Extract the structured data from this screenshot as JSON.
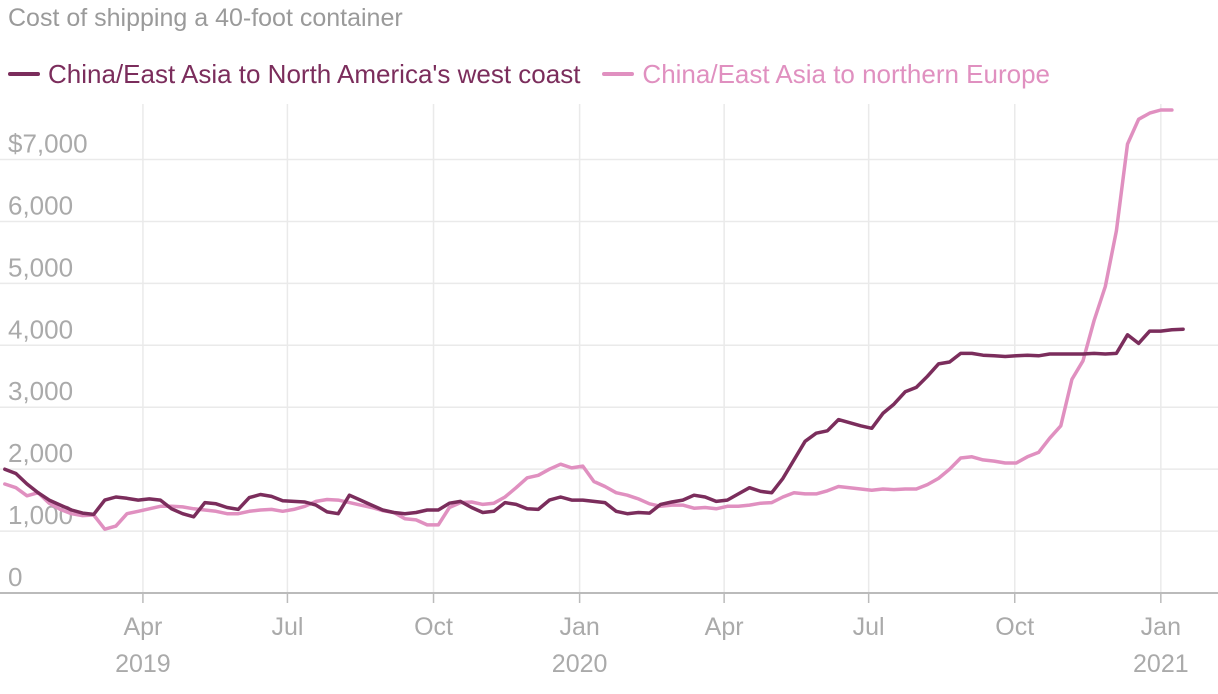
{
  "chart_data": {
    "type": "line",
    "title": "Cost of shipping a 40-foot container",
    "xlabel": "",
    "ylabel": "",
    "ylim": [
      0,
      7800
    ],
    "yticks": [
      0,
      1000,
      2000,
      3000,
      4000,
      5000,
      6000,
      7000
    ],
    "ytick_labels": [
      "0",
      "1,000",
      "2,000",
      "3,000",
      "4,000",
      "5,000",
      "6,000",
      "$7,000"
    ],
    "xlim": [
      "2019-01-01",
      "2021-02-06"
    ],
    "xticks": [
      {
        "date": "2019-04-01",
        "label": "Apr",
        "year": "2019"
      },
      {
        "date": "2019-07-01",
        "label": "Jul",
        "year": ""
      },
      {
        "date": "2019-10-01",
        "label": "Oct",
        "year": ""
      },
      {
        "date": "2020-01-01",
        "label": "Jan",
        "year": "2020"
      },
      {
        "date": "2020-04-01",
        "label": "Apr",
        "year": ""
      },
      {
        "date": "2020-07-01",
        "label": "Jul",
        "year": ""
      },
      {
        "date": "2020-10-01",
        "label": "Oct",
        "year": ""
      },
      {
        "date": "2021-01-01",
        "label": "Jan",
        "year": "2021"
      }
    ],
    "grid": true,
    "legend_position": "top-left",
    "series": [
      {
        "name": "China/East Asia to North America's west coast",
        "color": "#7b2d5c",
        "points": [
          [
            "2019-01-04",
            2000
          ],
          [
            "2019-01-11",
            1930
          ],
          [
            "2019-01-18",
            1760
          ],
          [
            "2019-01-25",
            1620
          ],
          [
            "2019-02-01",
            1500
          ],
          [
            "2019-02-08",
            1420
          ],
          [
            "2019-02-15",
            1340
          ],
          [
            "2019-02-22",
            1290
          ],
          [
            "2019-03-01",
            1270
          ],
          [
            "2019-03-08",
            1500
          ],
          [
            "2019-03-15",
            1550
          ],
          [
            "2019-03-22",
            1530
          ],
          [
            "2019-03-29",
            1500
          ],
          [
            "2019-04-05",
            1520
          ],
          [
            "2019-04-12",
            1500
          ],
          [
            "2019-04-19",
            1360
          ],
          [
            "2019-04-26",
            1280
          ],
          [
            "2019-05-03",
            1230
          ],
          [
            "2019-05-10",
            1460
          ],
          [
            "2019-05-17",
            1440
          ],
          [
            "2019-05-24",
            1380
          ],
          [
            "2019-05-31",
            1350
          ],
          [
            "2019-06-07",
            1540
          ],
          [
            "2019-06-14",
            1590
          ],
          [
            "2019-06-21",
            1560
          ],
          [
            "2019-06-28",
            1490
          ],
          [
            "2019-07-05",
            1480
          ],
          [
            "2019-07-12",
            1470
          ],
          [
            "2019-07-19",
            1420
          ],
          [
            "2019-07-26",
            1310
          ],
          [
            "2019-08-02",
            1280
          ],
          [
            "2019-08-09",
            1580
          ],
          [
            "2019-08-16",
            1500
          ],
          [
            "2019-08-23",
            1420
          ],
          [
            "2019-08-30",
            1340
          ],
          [
            "2019-09-06",
            1300
          ],
          [
            "2019-09-13",
            1280
          ],
          [
            "2019-09-20",
            1300
          ],
          [
            "2019-09-27",
            1340
          ],
          [
            "2019-10-04",
            1340
          ],
          [
            "2019-10-11",
            1450
          ],
          [
            "2019-10-18",
            1480
          ],
          [
            "2019-10-25",
            1380
          ],
          [
            "2019-11-01",
            1300
          ],
          [
            "2019-11-08",
            1320
          ],
          [
            "2019-11-15",
            1460
          ],
          [
            "2019-11-22",
            1430
          ],
          [
            "2019-11-29",
            1360
          ],
          [
            "2019-12-06",
            1350
          ],
          [
            "2019-12-13",
            1500
          ],
          [
            "2019-12-20",
            1550
          ],
          [
            "2019-12-27",
            1500
          ],
          [
            "2020-01-03",
            1500
          ],
          [
            "2020-01-10",
            1480
          ],
          [
            "2020-01-17",
            1460
          ],
          [
            "2020-01-24",
            1320
          ],
          [
            "2020-01-31",
            1280
          ],
          [
            "2020-02-07",
            1300
          ],
          [
            "2020-02-14",
            1290
          ],
          [
            "2020-02-21",
            1430
          ],
          [
            "2020-02-28",
            1470
          ],
          [
            "2020-03-06",
            1500
          ],
          [
            "2020-03-13",
            1580
          ],
          [
            "2020-03-20",
            1550
          ],
          [
            "2020-03-27",
            1480
          ],
          [
            "2020-04-03",
            1500
          ],
          [
            "2020-04-10",
            1600
          ],
          [
            "2020-04-17",
            1700
          ],
          [
            "2020-04-24",
            1640
          ],
          [
            "2020-05-01",
            1620
          ],
          [
            "2020-05-08",
            1850
          ],
          [
            "2020-05-15",
            2150
          ],
          [
            "2020-05-22",
            2450
          ],
          [
            "2020-05-29",
            2580
          ],
          [
            "2020-06-05",
            2620
          ],
          [
            "2020-06-12",
            2800
          ],
          [
            "2020-06-19",
            2750
          ],
          [
            "2020-06-26",
            2700
          ],
          [
            "2020-07-03",
            2660
          ],
          [
            "2020-07-10",
            2900
          ],
          [
            "2020-07-17",
            3050
          ],
          [
            "2020-07-24",
            3250
          ],
          [
            "2020-07-31",
            3320
          ],
          [
            "2020-08-07",
            3500
          ],
          [
            "2020-08-14",
            3700
          ],
          [
            "2020-08-21",
            3730
          ],
          [
            "2020-08-28",
            3870
          ],
          [
            "2020-09-04",
            3870
          ],
          [
            "2020-09-11",
            3840
          ],
          [
            "2020-09-18",
            3830
          ],
          [
            "2020-09-25",
            3820
          ],
          [
            "2020-10-02",
            3830
          ],
          [
            "2020-10-09",
            3840
          ],
          [
            "2020-10-16",
            3830
          ],
          [
            "2020-10-23",
            3860
          ],
          [
            "2020-10-30",
            3860
          ],
          [
            "2020-11-06",
            3860
          ],
          [
            "2020-11-13",
            3860
          ],
          [
            "2020-11-20",
            3870
          ],
          [
            "2020-11-27",
            3860
          ],
          [
            "2020-12-04",
            3870
          ],
          [
            "2020-12-11",
            4170
          ],
          [
            "2020-12-18",
            4030
          ],
          [
            "2020-12-25",
            4230
          ],
          [
            "2021-01-01",
            4230
          ],
          [
            "2021-01-08",
            4250
          ],
          [
            "2021-01-15",
            4260
          ]
        ]
      },
      {
        "name": "China/East Asia to northern Europe",
        "color": "#e090c0",
        "points": [
          [
            "2019-01-04",
            1760
          ],
          [
            "2019-01-11",
            1700
          ],
          [
            "2019-01-18",
            1570
          ],
          [
            "2019-01-25",
            1620
          ],
          [
            "2019-02-01",
            1450
          ],
          [
            "2019-02-08",
            1350
          ],
          [
            "2019-02-15",
            1280
          ],
          [
            "2019-02-22",
            1250
          ],
          [
            "2019-03-01",
            1260
          ],
          [
            "2019-03-08",
            1030
          ],
          [
            "2019-03-15",
            1080
          ],
          [
            "2019-03-22",
            1280
          ],
          [
            "2019-03-29",
            1320
          ],
          [
            "2019-04-05",
            1360
          ],
          [
            "2019-04-12",
            1400
          ],
          [
            "2019-04-19",
            1400
          ],
          [
            "2019-04-26",
            1390
          ],
          [
            "2019-05-03",
            1360
          ],
          [
            "2019-05-10",
            1340
          ],
          [
            "2019-05-17",
            1320
          ],
          [
            "2019-05-24",
            1280
          ],
          [
            "2019-05-31",
            1280
          ],
          [
            "2019-06-07",
            1320
          ],
          [
            "2019-06-14",
            1340
          ],
          [
            "2019-06-21",
            1350
          ],
          [
            "2019-06-28",
            1320
          ],
          [
            "2019-07-05",
            1350
          ],
          [
            "2019-07-12",
            1400
          ],
          [
            "2019-07-19",
            1480
          ],
          [
            "2019-07-26",
            1510
          ],
          [
            "2019-08-02",
            1500
          ],
          [
            "2019-08-09",
            1460
          ],
          [
            "2019-08-16",
            1420
          ],
          [
            "2019-08-23",
            1380
          ],
          [
            "2019-08-30",
            1330
          ],
          [
            "2019-09-06",
            1300
          ],
          [
            "2019-09-13",
            1200
          ],
          [
            "2019-09-20",
            1180
          ],
          [
            "2019-09-27",
            1100
          ],
          [
            "2019-10-04",
            1100
          ],
          [
            "2019-10-11",
            1380
          ],
          [
            "2019-10-18",
            1460
          ],
          [
            "2019-10-25",
            1470
          ],
          [
            "2019-11-01",
            1430
          ],
          [
            "2019-11-08",
            1450
          ],
          [
            "2019-11-15",
            1550
          ],
          [
            "2019-11-22",
            1700
          ],
          [
            "2019-11-29",
            1860
          ],
          [
            "2019-12-06",
            1900
          ],
          [
            "2019-12-13",
            2000
          ],
          [
            "2019-12-20",
            2080
          ],
          [
            "2019-12-27",
            2020
          ],
          [
            "2020-01-03",
            2050
          ],
          [
            "2020-01-10",
            1800
          ],
          [
            "2020-01-17",
            1720
          ],
          [
            "2020-01-24",
            1620
          ],
          [
            "2020-01-31",
            1580
          ],
          [
            "2020-02-07",
            1520
          ],
          [
            "2020-02-14",
            1440
          ],
          [
            "2020-02-21",
            1400
          ],
          [
            "2020-02-28",
            1420
          ],
          [
            "2020-03-06",
            1420
          ],
          [
            "2020-03-13",
            1370
          ],
          [
            "2020-03-20",
            1380
          ],
          [
            "2020-03-27",
            1360
          ],
          [
            "2020-04-03",
            1400
          ],
          [
            "2020-04-10",
            1400
          ],
          [
            "2020-04-17",
            1420
          ],
          [
            "2020-04-24",
            1450
          ],
          [
            "2020-05-01",
            1460
          ],
          [
            "2020-05-08",
            1550
          ],
          [
            "2020-05-15",
            1620
          ],
          [
            "2020-05-22",
            1600
          ],
          [
            "2020-05-29",
            1600
          ],
          [
            "2020-06-05",
            1650
          ],
          [
            "2020-06-12",
            1720
          ],
          [
            "2020-06-19",
            1700
          ],
          [
            "2020-06-26",
            1680
          ],
          [
            "2020-07-03",
            1660
          ],
          [
            "2020-07-10",
            1680
          ],
          [
            "2020-07-17",
            1670
          ],
          [
            "2020-07-24",
            1680
          ],
          [
            "2020-07-31",
            1680
          ],
          [
            "2020-08-07",
            1750
          ],
          [
            "2020-08-14",
            1850
          ],
          [
            "2020-08-21",
            2000
          ],
          [
            "2020-08-28",
            2180
          ],
          [
            "2020-09-04",
            2200
          ],
          [
            "2020-09-11",
            2150
          ],
          [
            "2020-09-18",
            2130
          ],
          [
            "2020-09-25",
            2100
          ],
          [
            "2020-10-02",
            2100
          ],
          [
            "2020-10-09",
            2200
          ],
          [
            "2020-10-16",
            2270
          ],
          [
            "2020-10-23",
            2500
          ],
          [
            "2020-10-30",
            2700
          ],
          [
            "2020-11-06",
            3450
          ],
          [
            "2020-11-13",
            3750
          ],
          [
            "2020-11-20",
            4400
          ],
          [
            "2020-11-27",
            4950
          ],
          [
            "2020-12-04",
            5850
          ],
          [
            "2020-12-11",
            7250
          ],
          [
            "2020-12-18",
            7650
          ],
          [
            "2020-12-25",
            7750
          ],
          [
            "2021-01-01",
            7800
          ],
          [
            "2021-01-08",
            7800
          ]
        ]
      }
    ]
  }
}
